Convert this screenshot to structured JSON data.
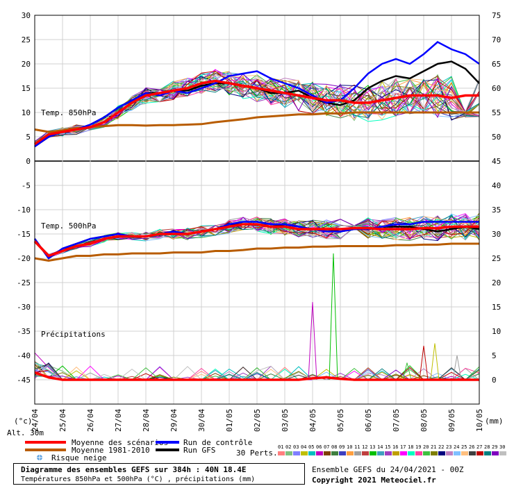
{
  "chart_data": {
    "type": "line",
    "dates": [
      "24/04",
      "25/04",
      "26/04",
      "27/04",
      "28/04",
      "29/04",
      "30/04",
      "01/05",
      "02/05",
      "03/05",
      "04/05",
      "05/05",
      "06/05",
      "07/05",
      "08/05",
      "09/05",
      "10/05"
    ],
    "left_axis_ticks": [
      30,
      25,
      20,
      15,
      10,
      5,
      0,
      -5,
      -10,
      -15,
      -20,
      -25,
      -30,
      -35,
      -40,
      -45
    ],
    "right_axis_ticks": [
      75,
      70,
      65,
      60,
      55,
      50,
      45,
      40,
      35,
      30,
      25,
      20,
      15,
      10,
      5,
      0
    ],
    "left_unit": "(°c)",
    "right_unit": "(mm)",
    "altitude_label": "Alt. 30m",
    "panels": {
      "t850": "Temp. 850hPa",
      "t500": "Temp. 500hPa",
      "precip": "Précipitations"
    },
    "x_days": [
      0,
      0.5,
      1,
      1.5,
      2,
      2.5,
      3,
      3.5,
      4,
      4.5,
      5,
      5.5,
      6,
      6.5,
      7,
      7.5,
      8,
      8.5,
      9,
      9.5,
      10,
      10.5,
      11,
      11.5,
      12,
      12.5,
      13,
      13.5,
      14,
      14.5,
      15,
      15.5,
      16
    ],
    "series": [
      {
        "key": "mean",
        "color": "#ff0000",
        "t850": [
          3.5,
          5.5,
          6,
          6.5,
          7,
          8,
          10,
          12,
          13.5,
          14,
          14.5,
          15,
          16,
          16.5,
          16,
          15.5,
          15,
          14.5,
          14,
          13.5,
          13,
          12.5,
          12.5,
          12,
          12,
          12.5,
          13,
          13.5,
          13.5,
          13.5,
          13,
          13.5,
          13.5
        ],
        "t500": [
          -16.5,
          -19.5,
          -18.5,
          -17.5,
          -17,
          -16,
          -15.5,
          -15.5,
          -15.5,
          -15,
          -15,
          -15,
          -14.5,
          -14,
          -13.5,
          -13,
          -13,
          -13.5,
          -13.5,
          -14,
          -14,
          -14,
          -14,
          -13.8,
          -13.8,
          -14,
          -14,
          -14,
          -13.8,
          -13.8,
          -13.5,
          -13.5,
          -13.5
        ],
        "precip": [
          1.5,
          0.5,
          0,
          0,
          0,
          0,
          0,
          0,
          0,
          0,
          0,
          0,
          0,
          0,
          0,
          0,
          0,
          0,
          0,
          0,
          0.3,
          0.5,
          0.2,
          0,
          0,
          0,
          0,
          0,
          0,
          0,
          0,
          0,
          0
        ]
      },
      {
        "key": "climo",
        "color": "#b85c00",
        "t850": [
          6.5,
          6,
          6.3,
          6.8,
          7,
          7.2,
          7.4,
          7.4,
          7.3,
          7.4,
          7.4,
          7.5,
          7.6,
          8,
          8.3,
          8.6,
          9,
          9.2,
          9.4,
          9.6,
          9.6,
          9.8,
          9.8,
          10,
          10,
          10,
          10,
          10,
          10,
          10,
          10,
          10,
          10
        ],
        "t500": [
          -20,
          -20.5,
          -20,
          -19.5,
          -19.5,
          -19.2,
          -19.2,
          -19,
          -19,
          -19,
          -18.8,
          -18.8,
          -18.8,
          -18.5,
          -18.5,
          -18.3,
          -18,
          -18,
          -17.8,
          -17.8,
          -17.6,
          -17.6,
          -17.5,
          -17.5,
          -17.5,
          -17.5,
          -17.3,
          -17.3,
          -17.2,
          -17.2,
          -17,
          -17,
          -17
        ]
      },
      {
        "key": "control",
        "color": "#0000ff",
        "t850": [
          3,
          5,
          6,
          6.5,
          7.5,
          9,
          11,
          12.5,
          14,
          13.5,
          14.5,
          14,
          15,
          16,
          17.5,
          18,
          18.5,
          17,
          16,
          15,
          13.5,
          12,
          12.5,
          15,
          18,
          20,
          21,
          20,
          22,
          24.5,
          23,
          22,
          20
        ],
        "t500": [
          -16,
          -20,
          -18,
          -17,
          -16,
          -15.5,
          -15,
          -15.5,
          -15.5,
          -15,
          -14.5,
          -15,
          -14.5,
          -14,
          -13,
          -12.5,
          -12.5,
          -13,
          -13,
          -13.5,
          -14,
          -14.5,
          -14.5,
          -14,
          -14,
          -13.5,
          -13,
          -13,
          -12.5,
          -12.5,
          -12.5,
          -12.5,
          -12.5
        ]
      },
      {
        "key": "gfs",
        "color": "#000000",
        "t850": [
          3,
          5,
          6,
          6.5,
          7.5,
          9,
          11,
          12.5,
          14,
          14,
          14.5,
          14.5,
          15.5,
          16,
          16,
          15.5,
          15,
          14,
          14,
          14.5,
          13,
          12,
          11.5,
          12.5,
          15,
          16.5,
          17.5,
          17,
          18.5,
          20,
          20.5,
          19,
          16
        ],
        "t500": [
          -16,
          -20,
          -18,
          -17,
          -16,
          -15.5,
          -15,
          -15.5,
          -15.5,
          -15,
          -14.5,
          -15,
          -14.5,
          -14,
          -13,
          -13,
          -13,
          -13.5,
          -13,
          -13.5,
          -14,
          -14,
          -14.5,
          -14,
          -14,
          -13.5,
          -13.5,
          -13.5,
          -14,
          -14.5,
          -14,
          -13.5,
          -14
        ]
      }
    ],
    "pert_colors": [
      "#ff7f7f",
      "#7fbf7f",
      "#7f7fff",
      "#bfbf00",
      "#00bfbf",
      "#bf00bf",
      "#7f3f00",
      "#3f7f3f",
      "#3f3fbf",
      "#ff9f3f",
      "#9f9f9f",
      "#bf3f3f",
      "#00bf00",
      "#3f9fbf",
      "#9f3fbf",
      "#bf9f00",
      "#ff00ff",
      "#00ffbf",
      "#ff3f9f",
      "#3fbf3f",
      "#7f7f00",
      "#00007f",
      "#bf7fbf",
      "#7fbfff",
      "#ffbf7f",
      "#3f3f3f",
      "#bf0000",
      "#007f7f",
      "#7f00bf",
      "#bfbfbf"
    ],
    "precip_spikes": [
      {
        "day": 10,
        "value": 16
      },
      {
        "day": 10.75,
        "value": 26
      },
      {
        "day": 13.4,
        "value": 3.5
      },
      {
        "day": 14,
        "value": 7
      },
      {
        "day": 14.4,
        "value": 7.5
      },
      {
        "day": 15.2,
        "value": 5
      }
    ]
  },
  "legend": {
    "mean": "Moyenne des scénarios",
    "climo": "Moyenne 1981-2010",
    "snow": "Risque neige",
    "control": "Run de contrôle",
    "gfs": "Run GFS",
    "perts": "30 Perts.",
    "pert_numbers": [
      "01",
      "02",
      "03",
      "04",
      "05",
      "06",
      "07",
      "08",
      "09",
      "10",
      "11",
      "12",
      "13",
      "14",
      "15",
      "16",
      "17",
      "18",
      "19",
      "20",
      "21",
      "22",
      "23",
      "24",
      "25",
      "26",
      "27",
      "28",
      "29",
      "30"
    ]
  },
  "footer": {
    "title": "Diagramme des ensembles GEFS sur 384h : 40N 18.4E",
    "subtitle": "Températures 850hPa et 500hPa (°C) , précipitations (mm)",
    "ensemble": "Ensemble GEFS du 24/04/2021 - 00Z",
    "copyright": "Copyright 2021 Meteociel.fr"
  },
  "colors": {
    "mean": "#ff0000",
    "climo": "#b85c00",
    "control": "#0000ff",
    "gfs": "#000000",
    "grid": "#d0d0d0"
  }
}
